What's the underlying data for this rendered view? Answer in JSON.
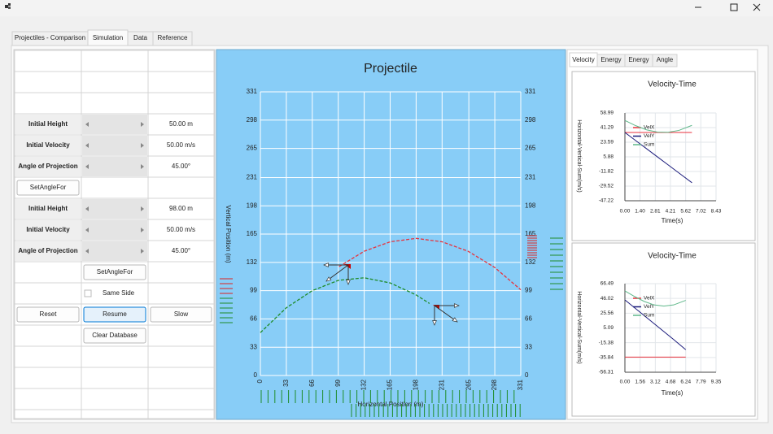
{
  "tabs": [
    "Projectiles - Comparison",
    "Simulation",
    "Data",
    "Reference"
  ],
  "projectile_1": [
    {
      "label": "Initial Height",
      "value": "50.00 m"
    },
    {
      "label": "Initial Velocity",
      "value": "50.00 m/s"
    },
    {
      "label": "Angle of Projection",
      "value": "45.00°"
    }
  ],
  "projectile_2": [
    {
      "label": "Initial Height",
      "value": "98.00 m"
    },
    {
      "label": "Initial Velocity",
      "value": "50.00 m/s"
    },
    {
      "label": "Angle of Projection",
      "value": "45.00°"
    }
  ],
  "buttons": [
    "SetAngleFor",
    "SetAngleFor",
    "Reset",
    "Resume",
    "Slow",
    "Clear Database"
  ],
  "same_side": "Same Side",
  "projectile_chart": {
    "type": "line",
    "title": "Projectile",
    "xlabel": "Horizontal Position (m)",
    "ylabel": "Vertical Position (m)",
    "xlim": [
      0,
      331
    ],
    "ylim": [
      0,
      331
    ],
    "xticks": [
      0,
      33,
      66,
      99,
      132,
      165,
      198,
      231,
      265,
      298,
      331
    ],
    "yticks": [
      0,
      33,
      66,
      99,
      132,
      165,
      198,
      231,
      265,
      298,
      331
    ],
    "grid": true,
    "series": [
      {
        "color": "#e8323c",
        "x": [
          100,
          132,
          165,
          198,
          231,
          264,
          298,
          331
        ],
        "values": [
          127,
          145,
          156,
          160,
          156,
          145,
          126,
          100
        ]
      },
      {
        "color": "#1e8c28",
        "x": [
          0,
          33,
          66,
          99,
          132,
          165,
          198,
          215
        ],
        "values": [
          50,
          79,
          99,
          111,
          114,
          108,
          94,
          84
        ]
      }
    ]
  },
  "right_tabs": [
    "Velocity",
    "Energy",
    "Energy",
    "Angle"
  ],
  "velocity_charts": [
    {
      "type": "line",
      "title": "Velocity-Time",
      "xlabel": "Time(s)",
      "ylabel": "Horizontal-Vertical-Sum(m/s)",
      "xlim": [
        0,
        8.43
      ],
      "ylim": [
        -47.22,
        58.99
      ],
      "xticks": [
        {
          "value": 0,
          "label": "0.00"
        },
        {
          "value": 1.4,
          "label": "1.40"
        },
        2.81,
        4.21,
        5.62,
        7.02,
        8.43
      ],
      "yticks": [
        58.99,
        41.29,
        23.59,
        5.88,
        -11.82,
        -29.52,
        -47.22
      ],
      "grid": true,
      "x": [
        0,
        1,
        2,
        3,
        4,
        5,
        6.2
      ],
      "series": [
        {
          "name": "VelX",
          "color": "#e8323c",
          "values": [
            35.36,
            35.36,
            35.36,
            35.36,
            35.36,
            35.36,
            35.36
          ]
        },
        {
          "name": "VelY",
          "color": "#1c1c7c",
          "values": [
            35.36,
            25.56,
            15.76,
            5.96,
            -3.84,
            -13.64,
            -25.4
          ]
        },
        {
          "name": "Sum",
          "color": "#5fb88a",
          "values": [
            50.0,
            43.6,
            38.6,
            35.9,
            35.6,
            37.9,
            44.0
          ]
        }
      ]
    },
    {
      "type": "line",
      "title": "Velocity-Time",
      "xlabel": "Time(s)",
      "ylabel": "Horizontal-Vertical-Sum(m/s)",
      "xlim": [
        0,
        9.35
      ],
      "ylim": [
        -56.31,
        66.49
      ],
      "xticks": [
        {
          "value": 0,
          "label": "0.00"
        },
        1.56,
        3.12,
        4.68,
        6.24,
        7.79,
        9.35
      ],
      "yticks": [
        66.49,
        46.02,
        25.56,
        5.09,
        -15.38,
        -35.84,
        -56.31
      ],
      "grid": true,
      "x": [
        0,
        1,
        2,
        3,
        4,
        5,
        6.24
      ],
      "series": [
        {
          "name": "VelX",
          "color": "#e8323c",
          "values": [
            -35.36,
            -35.36,
            -35.36,
            -35.36,
            -35.36,
            -35.36,
            -35.36
          ]
        },
        {
          "name": "VelY",
          "color": "#1c1c7c",
          "values": [
            44,
            33,
            22,
            11,
            0,
            -11,
            -25
          ]
        },
        {
          "name": "Sum",
          "color": "#5fb88a",
          "values": [
            56.4,
            48.6,
            41.7,
            37.0,
            35.4,
            37.0,
            43.3
          ]
        }
      ]
    }
  ]
}
